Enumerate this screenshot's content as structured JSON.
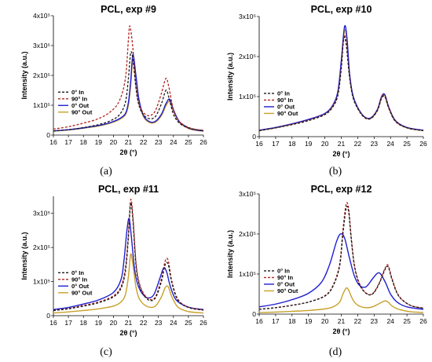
{
  "colors": {
    "in_0": "#1a1a1a",
    "in_90": "#b4231f",
    "out_0": "#1f1fd0",
    "out_90": "#c8a02a"
  },
  "chart_data": [
    {
      "type": "line",
      "panel": "(a)",
      "title": "PCL, exp #9",
      "xlabel": "2θ (°)",
      "ylabel": "Intensity (a.u.)",
      "xlim": [
        16,
        26
      ],
      "ylim": [
        0,
        400000
      ],
      "yticks": [
        0,
        100000,
        200000,
        300000,
        400000
      ],
      "ytick_labels": [
        "0",
        "1x10⁵",
        "2x10⁵",
        "3x10⁵",
        "4x10⁵"
      ],
      "series": [
        {
          "name": "0° In",
          "color": "#1a1a1a",
          "dash": "dashed",
          "x": [
            16,
            17,
            18,
            19,
            19.8,
            20.4,
            20.8,
            21.0,
            21.15,
            21.3,
            21.5,
            21.7,
            22.0,
            22.4,
            22.8,
            23.2,
            23.5,
            23.7,
            24.0,
            24.4,
            25.0,
            25.5,
            26
          ],
          "y": [
            14000,
            18000,
            25000,
            35000,
            48000,
            68000,
            110000,
            190000,
            275000,
            255000,
            160000,
            100000,
            68000,
            55000,
            62000,
            105000,
            150000,
            125000,
            70000,
            40000,
            24000,
            18000,
            15000
          ]
        },
        {
          "name": "90° In",
          "color": "#b4231f",
          "dash": "dashed",
          "x": [
            16,
            17,
            18,
            19,
            19.8,
            20.4,
            20.8,
            21.0,
            21.1,
            21.3,
            21.5,
            21.7,
            22.0,
            22.4,
            22.8,
            23.2,
            23.5,
            23.7,
            24.0,
            24.4,
            25.0,
            25.5,
            26
          ],
          "y": [
            20000,
            28000,
            40000,
            55000,
            78000,
            115000,
            190000,
            320000,
            365000,
            290000,
            160000,
            105000,
            75000,
            65000,
            82000,
            140000,
            190000,
            160000,
            85000,
            45000,
            26000,
            19000,
            16000
          ]
        },
        {
          "name": "0° Out",
          "color": "#1f1fd0",
          "dash": "solid",
          "x": [
            16,
            17,
            18,
            19,
            19.8,
            20.4,
            20.8,
            21.0,
            21.15,
            21.3,
            21.5,
            21.7,
            22.0,
            22.4,
            22.8,
            23.2,
            23.5,
            23.75,
            24.0,
            24.4,
            25.0,
            25.5,
            26
          ],
          "y": [
            14000,
            18000,
            24000,
            32000,
            42000,
            55000,
            72000,
            110000,
            180000,
            270000,
            200000,
            120000,
            66000,
            45000,
            46000,
            70000,
            105000,
            120000,
            85000,
            45000,
            24000,
            17000,
            14000
          ]
        },
        {
          "name": "90° Out",
          "color": "#c8a02a",
          "dash": "solid",
          "x": [
            16,
            17,
            18,
            19,
            19.8,
            20.4,
            20.8,
            21.0,
            21.15,
            21.3,
            21.5,
            21.7,
            22.0,
            22.4,
            22.8,
            23.2,
            23.5,
            23.75,
            24.0,
            24.4,
            25.0,
            25.5,
            26
          ],
          "y": [
            13000,
            17000,
            23000,
            30000,
            40000,
            52000,
            68000,
            100000,
            165000,
            250000,
            190000,
            115000,
            62000,
            42000,
            43000,
            65000,
            98000,
            112000,
            80000,
            42000,
            22000,
            16000,
            13000
          ]
        }
      ]
    },
    {
      "type": "line",
      "panel": "(b)",
      "title": "PCL, exp #10",
      "xlabel": "2θ (°)",
      "ylabel": "Intensity (a.u.)",
      "xlim": [
        16,
        26
      ],
      "ylim": [
        0,
        300000
      ],
      "yticks": [
        0,
        100000,
        200000,
        300000
      ],
      "ytick_labels": [
        "0",
        "1x10⁵",
        "2x10⁵",
        "3x10⁵"
      ],
      "series": [
        {
          "name": "0° In",
          "color": "#1a1a1a",
          "dash": "dashed",
          "x": [
            16,
            17,
            18,
            19,
            20,
            20.5,
            20.8,
            21.0,
            21.15,
            21.3,
            21.5,
            21.7,
            22.0,
            22.4,
            22.8,
            23.2,
            23.45,
            23.65,
            23.9,
            24.3,
            25.0,
            26
          ],
          "y": [
            15000,
            22000,
            30000,
            40000,
            55000,
            75000,
            105000,
            170000,
            245000,
            230000,
            150000,
            100000,
            70000,
            48000,
            45000,
            65000,
            95000,
            100000,
            70000,
            38000,
            22000,
            15000
          ]
        },
        {
          "name": "90° In",
          "color": "#b4231f",
          "dash": "dashed",
          "x": [
            16,
            17,
            18,
            19,
            20,
            20.5,
            20.8,
            21.0,
            21.15,
            21.3,
            21.5,
            21.7,
            22.0,
            22.4,
            22.8,
            23.2,
            23.45,
            23.65,
            23.9,
            24.3,
            25.0,
            26
          ],
          "y": [
            15000,
            22000,
            31000,
            41000,
            56000,
            77000,
            108000,
            175000,
            250000,
            235000,
            152000,
            102000,
            71000,
            49000,
            46000,
            67000,
            98000,
            103000,
            72000,
            39000,
            22000,
            15000
          ]
        },
        {
          "name": "0° Out",
          "color": "#1f1fd0",
          "dash": "solid",
          "x": [
            16,
            17,
            18,
            19,
            20,
            20.5,
            20.8,
            21.0,
            21.2,
            21.35,
            21.5,
            21.7,
            22.0,
            22.4,
            22.8,
            23.2,
            23.45,
            23.65,
            23.9,
            24.3,
            25.0,
            26
          ],
          "y": [
            16000,
            23000,
            32000,
            43000,
            58000,
            80000,
            115000,
            190000,
            275000,
            245000,
            160000,
            105000,
            73000,
            50000,
            47000,
            68000,
            100000,
            105000,
            73000,
            40000,
            23000,
            16000
          ]
        },
        {
          "name": "90° Out",
          "color": "#c8a02a",
          "dash": "solid",
          "x": [
            16,
            17,
            18,
            19,
            20,
            20.5,
            20.8,
            21.0,
            21.2,
            21.35,
            21.5,
            21.7,
            22.0,
            22.4,
            22.8,
            23.2,
            23.45,
            23.65,
            23.9,
            24.3,
            25.0,
            26
          ],
          "y": [
            15000,
            22000,
            31000,
            42000,
            57000,
            78000,
            112000,
            185000,
            265000,
            238000,
            156000,
            103000,
            72000,
            49000,
            46000,
            66000,
            97000,
            102000,
            71000,
            39000,
            22000,
            15000
          ]
        }
      ]
    },
    {
      "type": "line",
      "panel": "(c)",
      "title": "PCL, exp #11",
      "xlabel": "2θ (°)",
      "ylabel": "Intensity (a.u.)",
      "xlim": [
        16,
        26
      ],
      "ylim": [
        0,
        350000
      ],
      "yticks": [
        0,
        100000,
        200000,
        300000
      ],
      "ytick_labels": [
        "0",
        "1x10⁵",
        "2x10⁵",
        "3x10⁵"
      ],
      "series": [
        {
          "name": "0° In",
          "color": "#1a1a1a",
          "dash": "dashed",
          "x": [
            16,
            17,
            18,
            19,
            20,
            20.5,
            20.8,
            21.0,
            21.15,
            21.3,
            21.5,
            21.7,
            22.0,
            22.4,
            22.8,
            23.2,
            23.45,
            23.65,
            23.9,
            24.3,
            25.0,
            26
          ],
          "y": [
            15000,
            20000,
            28000,
            38000,
            55000,
            80000,
            130000,
            230000,
            330000,
            280000,
            150000,
            95000,
            62000,
            45000,
            52000,
            100000,
            150000,
            150000,
            95000,
            45000,
            24000,
            16000
          ]
        },
        {
          "name": "90° In",
          "color": "#b4231f",
          "dash": "dashed",
          "x": [
            16,
            17,
            18,
            19,
            20,
            20.5,
            20.8,
            21.0,
            21.15,
            21.3,
            21.5,
            21.7,
            22.0,
            22.4,
            22.8,
            23.2,
            23.45,
            23.65,
            23.9,
            24.3,
            25.0,
            26
          ],
          "y": [
            16000,
            21000,
            30000,
            40000,
            58000,
            85000,
            140000,
            240000,
            340000,
            290000,
            158000,
            100000,
            66000,
            48000,
            55000,
            108000,
            160000,
            162000,
            100000,
            48000,
            25000,
            17000
          ]
        },
        {
          "name": "0° Out",
          "color": "#1f1fd0",
          "dash": "solid",
          "x": [
            16,
            17,
            18,
            19,
            20,
            20.5,
            20.7,
            20.9,
            21.05,
            21.2,
            21.4,
            21.6,
            21.9,
            22.3,
            22.7,
            23.1,
            23.35,
            23.55,
            23.8,
            24.2,
            25.0,
            26
          ],
          "y": [
            18000,
            24000,
            34000,
            46000,
            68000,
            105000,
            160000,
            250000,
            285000,
            230000,
            140000,
            95000,
            66000,
            52000,
            62000,
            110000,
            140000,
            128000,
            85000,
            45000,
            25000,
            18000
          ]
        },
        {
          "name": "90° Out",
          "color": "#c8a02a",
          "dash": "solid",
          "x": [
            16,
            17,
            18,
            19,
            20,
            20.5,
            20.8,
            21.0,
            21.15,
            21.3,
            21.5,
            21.7,
            22.0,
            22.4,
            22.8,
            23.2,
            23.45,
            23.65,
            23.9,
            24.3,
            25.0,
            26
          ],
          "y": [
            8000,
            11000,
            15000,
            20000,
            28000,
            40000,
            62000,
            115000,
            180000,
            150000,
            85000,
            52000,
            34000,
            25000,
            28000,
            55000,
            82000,
            85000,
            55000,
            25000,
            12000,
            8000
          ]
        }
      ]
    },
    {
      "type": "line",
      "panel": "(d)",
      "title": "PCL, exp #12",
      "xlabel": "2θ (°)",
      "ylabel": "Intensity (a.u.)",
      "xlim": [
        16,
        26
      ],
      "ylim": [
        0,
        300000
      ],
      "yticks": [
        0,
        100000,
        200000,
        300000
      ],
      "ytick_labels": [
        "0",
        "1x10⁵",
        "2x10⁵",
        "3x10⁵"
      ],
      "series": [
        {
          "name": "0° In",
          "color": "#1a1a1a",
          "dash": "dashed",
          "x": [
            16,
            17,
            18,
            19,
            20,
            20.5,
            20.9,
            21.1,
            21.3,
            21.45,
            21.6,
            21.8,
            22.1,
            22.5,
            22.9,
            23.3,
            23.65,
            23.85,
            24.1,
            24.5,
            25.2,
            26
          ],
          "y": [
            12000,
            16000,
            22000,
            30000,
            45000,
            70000,
            120000,
            200000,
            265000,
            255000,
            190000,
            120000,
            75000,
            52000,
            50000,
            75000,
            110000,
            118000,
            85000,
            45000,
            22000,
            15000
          ]
        },
        {
          "name": "90° In",
          "color": "#b4231f",
          "dash": "dashed",
          "x": [
            16,
            17,
            18,
            19,
            20,
            20.5,
            20.9,
            21.1,
            21.3,
            21.45,
            21.6,
            21.8,
            22.1,
            22.5,
            22.9,
            23.3,
            23.65,
            23.85,
            24.1,
            24.5,
            25.2,
            26
          ],
          "y": [
            12000,
            16000,
            22000,
            30000,
            46000,
            72000,
            125000,
            210000,
            275000,
            262000,
            195000,
            123000,
            77000,
            53000,
            51000,
            77000,
            113000,
            122000,
            88000,
            46000,
            22000,
            15000
          ]
        },
        {
          "name": "0° Out",
          "color": "#1f1fd0",
          "dash": "solid",
          "x": [
            16,
            17,
            18,
            19,
            19.8,
            20.3,
            20.7,
            20.95,
            21.2,
            21.5,
            21.8,
            22.1,
            22.5,
            22.9,
            23.2,
            23.4,
            23.7,
            24.0,
            24.4,
            25.0,
            26
          ],
          "y": [
            18000,
            25000,
            36000,
            52000,
            80000,
            125000,
            180000,
            200000,
            190000,
            140000,
            95000,
            72000,
            68000,
            88000,
            102000,
            100000,
            78000,
            50000,
            30000,
            18000,
            12000
          ]
        },
        {
          "name": "90° Out",
          "color": "#c8a02a",
          "dash": "solid",
          "x": [
            16,
            17,
            18,
            19,
            20,
            20.5,
            20.9,
            21.1,
            21.3,
            21.45,
            21.6,
            21.8,
            22.1,
            22.5,
            22.9,
            23.3,
            23.65,
            23.85,
            24.1,
            24.5,
            25.2,
            26
          ],
          "y": [
            4000,
            5000,
            7000,
            9000,
            13000,
            18000,
            30000,
            50000,
            65000,
            60000,
            45000,
            30000,
            20000,
            16000,
            18000,
            26000,
            33000,
            30000,
            20000,
            12000,
            6000,
            4000
          ]
        }
      ]
    }
  ]
}
